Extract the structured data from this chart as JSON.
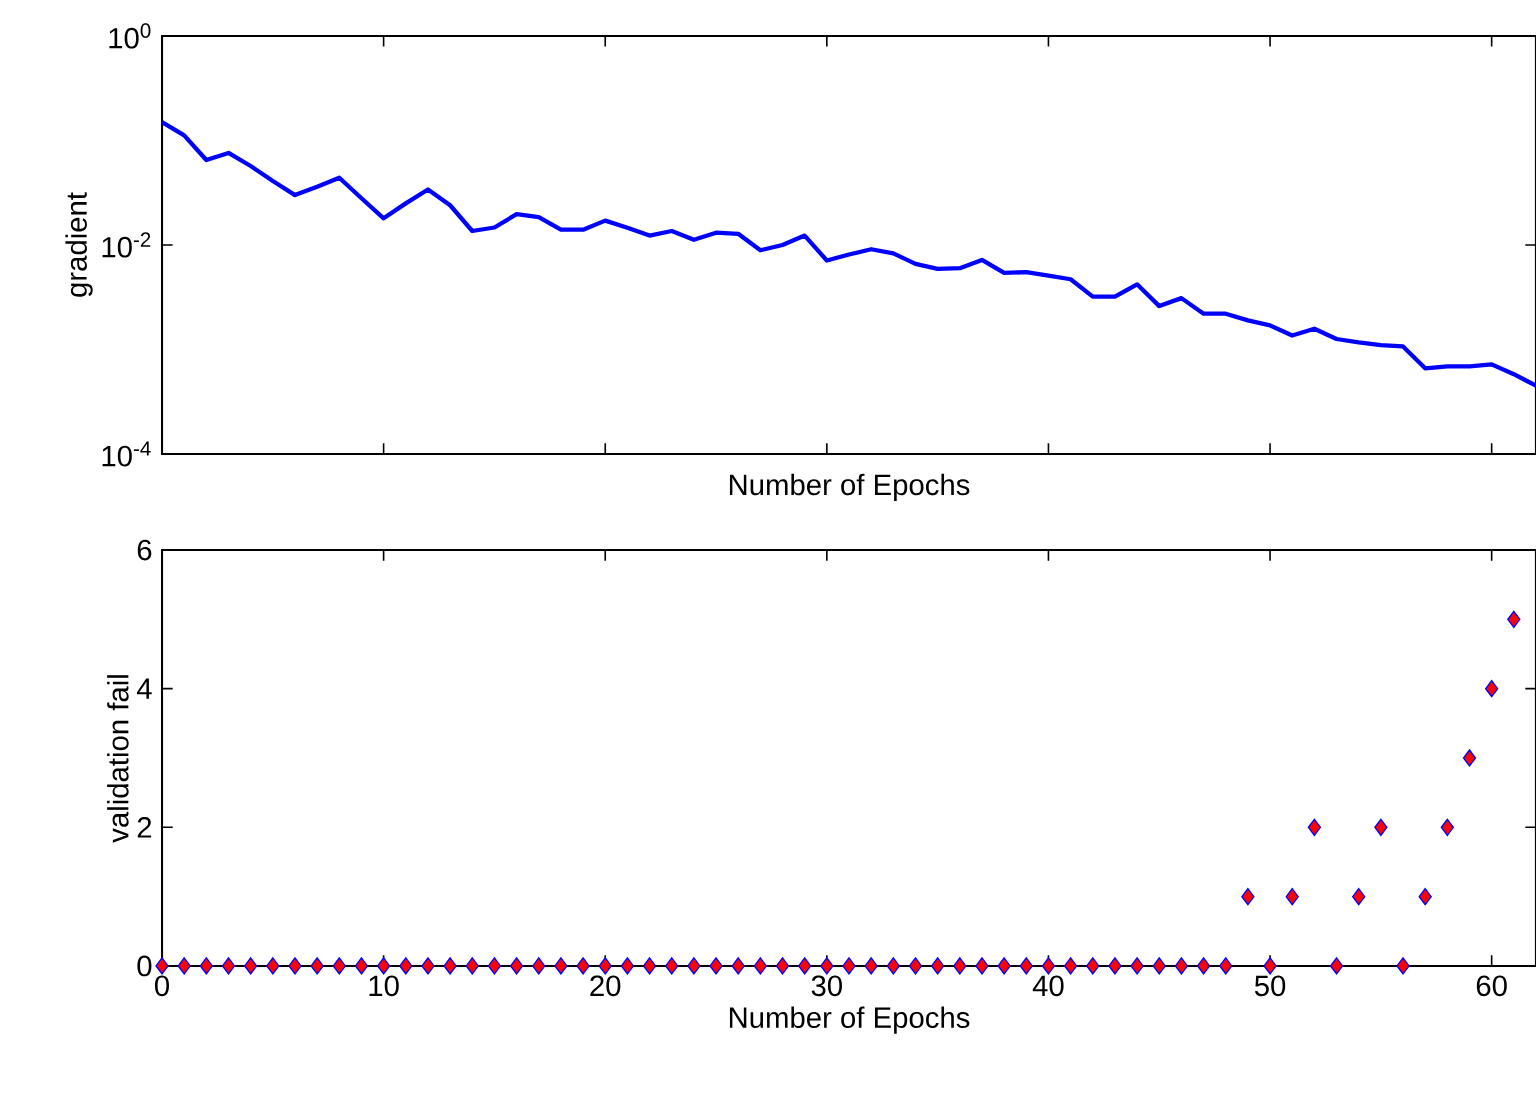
{
  "chart_data": [
    {
      "type": "line",
      "xlabel": "Number of Epochs",
      "ylabel": "gradient",
      "log": "y",
      "tick_labels": "y",
      "xlim": [
        0,
        62
      ],
      "xticks": [
        {
          "value": 0,
          "label": null
        },
        {
          "value": 10,
          "label": null
        },
        {
          "value": 20,
          "label": null
        },
        {
          "value": 30,
          "label": null
        },
        {
          "value": 40,
          "label": null
        },
        {
          "value": 50,
          "label": null
        },
        {
          "value": 60,
          "label": null
        }
      ],
      "ylim": [
        0.0001,
        1
      ],
      "yticks": [
        {
          "value": 0.0001,
          "label": "10$^{-4}$"
        },
        {
          "value": 0.01,
          "label": "10$^{-2}$"
        },
        {
          "value": 1,
          "label": "10$^{0}$"
        }
      ],
      "marker": "none",
      "line_style": "solid",
      "x": [
        0,
        1,
        2,
        3,
        4,
        5,
        6,
        7,
        8,
        9,
        10,
        11,
        12,
        13,
        14,
        15,
        16,
        17,
        18,
        19,
        20,
        21,
        22,
        23,
        24,
        25,
        26,
        27,
        28,
        29,
        30,
        31,
        32,
        33,
        34,
        35,
        36,
        37,
        38,
        39,
        40,
        41,
        42,
        43,
        44,
        45,
        46,
        47,
        48,
        49,
        50,
        51,
        52,
        53,
        54,
        55,
        56,
        57,
        58,
        59,
        60,
        61,
        62
      ],
      "series": [
        {
          "color": "#0000ff",
          "values": [
            0.15,
            0.112,
            0.065,
            0.076,
            0.057,
            0.041,
            0.03,
            0.036,
            0.044,
            0.028,
            0.018,
            0.025,
            0.034,
            0.024,
            0.0136,
            0.0147,
            0.0197,
            0.0185,
            0.014,
            0.014,
            0.0171,
            0.0146,
            0.0123,
            0.0136,
            0.0112,
            0.0131,
            0.0128,
            0.0089,
            0.01,
            0.0123,
            0.0071,
            0.0081,
            0.0091,
            0.0083,
            0.0066,
            0.0059,
            0.006,
            0.0072,
            0.0054,
            0.0055,
            0.0051,
            0.0047,
            0.0032,
            0.0032,
            0.0042,
            0.0026,
            0.0031,
            0.0022,
            0.0022,
            0.0019,
            0.0017,
            0.00136,
            0.00158,
            0.00126,
            0.00117,
            0.0011,
            0.00107,
            0.00066,
            0.00069,
            0.00069,
            0.00072,
            0.00058,
            0.00045
          ]
        }
      ]
    },
    {
      "type": "scatter",
      "xlabel": "Number of Epochs",
      "ylabel": "validation fail",
      "xlim": [
        0,
        62
      ],
      "xticks": [
        0,
        10,
        20,
        30,
        40,
        50,
        60
      ],
      "ylim": [
        0,
        6
      ],
      "yticks": [
        0,
        2,
        4,
        6
      ],
      "marker": "diamond",
      "x": [
        0,
        1,
        2,
        3,
        4,
        5,
        6,
        7,
        8,
        9,
        10,
        11,
        12,
        13,
        14,
        15,
        16,
        17,
        18,
        19,
        20,
        21,
        22,
        23,
        24,
        25,
        26,
        27,
        28,
        29,
        30,
        31,
        32,
        33,
        34,
        35,
        36,
        37,
        38,
        39,
        40,
        41,
        42,
        43,
        44,
        45,
        46,
        47,
        48,
        49,
        50,
        51,
        52,
        53,
        54,
        55,
        56,
        57,
        58,
        59,
        60,
        61
      ],
      "series": [
        {
          "color": "#ff0000",
          "values": [
            0,
            0,
            0,
            0,
            0,
            0,
            0,
            0,
            0,
            0,
            0,
            0,
            0,
            0,
            0,
            0,
            0,
            0,
            0,
            0,
            0,
            0,
            0,
            0,
            0,
            0,
            0,
            0,
            0,
            0,
            0,
            0,
            0,
            0,
            0,
            0,
            0,
            0,
            0,
            0,
            0,
            0,
            0,
            0,
            0,
            0,
            0,
            0,
            0,
            1,
            0,
            1,
            2,
            0,
            1,
            2,
            0,
            1,
            2,
            3,
            4,
            5
          ]
        }
      ]
    }
  ]
}
